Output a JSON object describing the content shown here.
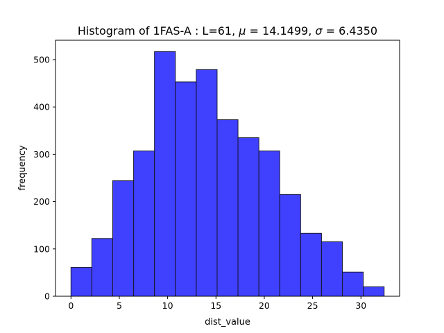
{
  "chart_data": {
    "type": "bar",
    "title_prefix": "Histogram of 1FAS-A : L=61, ",
    "title_mu_symbol": "μ",
    "title_mu_value": " = 14.1499, ",
    "title_sigma_symbol": "σ",
    "title_sigma_value": " = 6.4350",
    "xlabel": "dist_value",
    "ylabel": "frequency",
    "xlim": [
      -1.6,
      34.0
    ],
    "ylim": [
      0,
      541
    ],
    "xticks": [
      0,
      5,
      10,
      15,
      20,
      25,
      30
    ],
    "yticks": [
      0,
      100,
      200,
      300,
      400,
      500
    ],
    "bin_edges": [
      0.0,
      2.16,
      4.32,
      6.48,
      8.64,
      10.8,
      12.96,
      15.12,
      17.28,
      19.44,
      21.6,
      23.76,
      25.92,
      28.08,
      30.24,
      32.4
    ],
    "values": [
      61,
      122,
      244,
      307,
      517,
      453,
      479,
      373,
      335,
      307,
      215,
      133,
      115,
      51,
      20
    ],
    "bar_fill": "#0000ff",
    "bar_fill_opacity": 0.75,
    "bar_edge": "#1a1a2e",
    "grid": false
  }
}
